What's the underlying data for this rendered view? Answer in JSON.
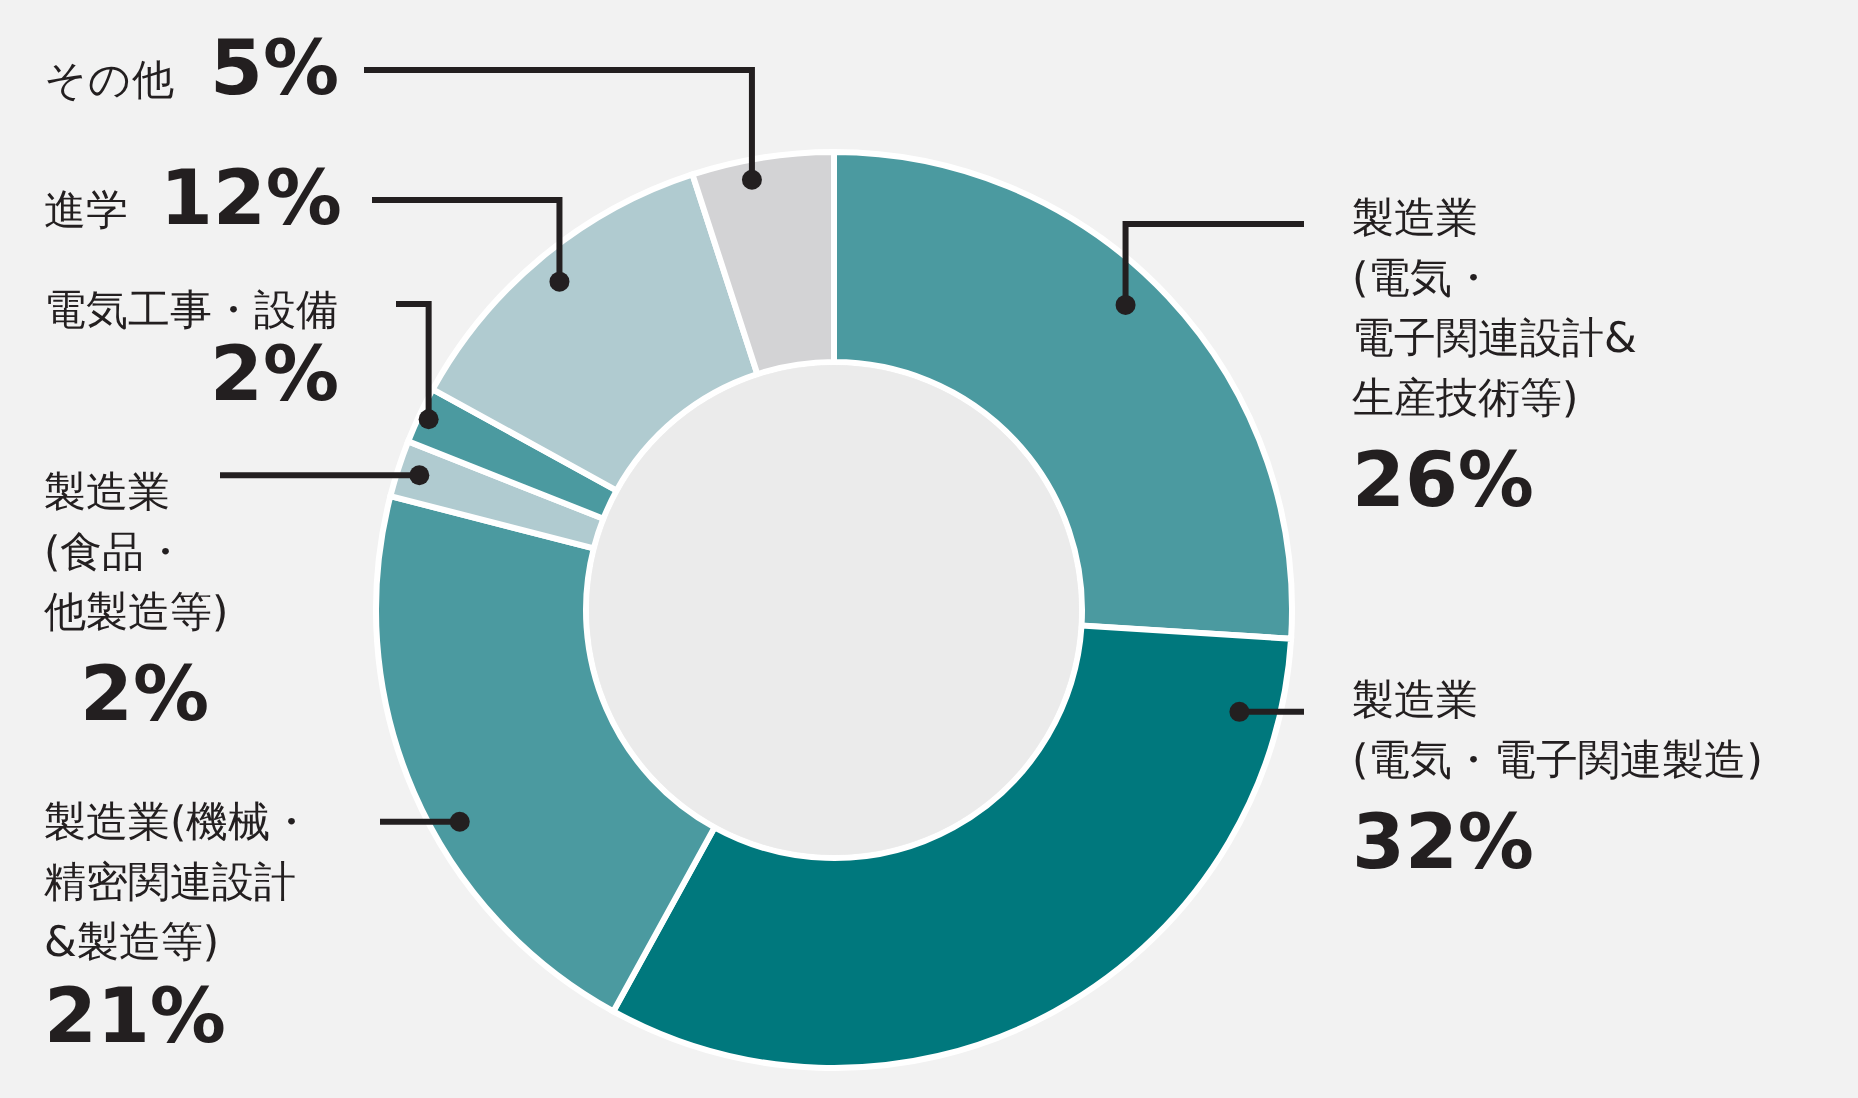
{
  "chart_data": {
    "type": "donut",
    "categories": [
      "製造業(電気・電子関連設計&生産技術等)",
      "製造業(電気・電子関連製造)",
      "製造業(機械・精密関連設計&製造等)",
      "製造業(食品・他製造等)",
      "電気工事・設備",
      "進学",
      "その他"
    ],
    "values": [
      26,
      32,
      21,
      2,
      2,
      12,
      5
    ],
    "colors": [
      "#4b9aa0",
      "#00787d",
      "#4b9aa0",
      "#b0cbd0",
      "#4b9aa0",
      "#b0cbd0",
      "#d3d3d5"
    ],
    "value_labels": [
      "26%",
      "32%",
      "21%",
      "2%",
      "2%",
      "12%",
      "5%"
    ]
  }
}
